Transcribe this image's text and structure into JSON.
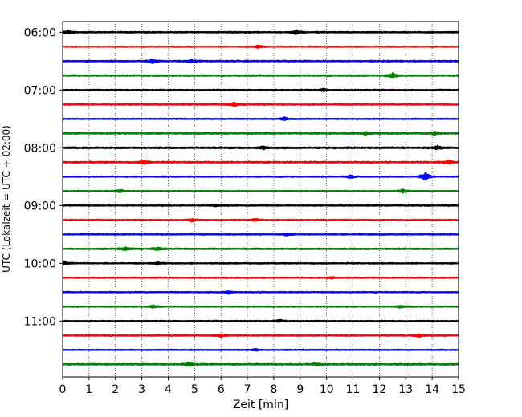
{
  "chart_data": {
    "type": "line",
    "title": "",
    "xlabel": "Zeit  [min]",
    "ylabel": "UTC (Lokalzeit = UTC + 02:00)",
    "xlim": [
      0,
      15
    ],
    "x_ticks": [
      0,
      1,
      2,
      3,
      4,
      5,
      6,
      7,
      8,
      9,
      10,
      11,
      12,
      13,
      14,
      15
    ],
    "y_ticks": [
      "06:00",
      "07:00",
      "08:00",
      "09:00",
      "10:00",
      "11:00"
    ],
    "grid": "vertical-dotted",
    "trace_colors": [
      "#000000",
      "#ff0000",
      "#0000ff",
      "#008000"
    ],
    "traces": [
      {
        "start": "06:00",
        "amplitude": 0.9,
        "events": [
          {
            "t": 0.2,
            "amp": 2.2
          },
          {
            "t": 8.85,
            "amp": 3.0
          }
        ]
      },
      {
        "start": "06:15",
        "amplitude": 0.8,
        "events": [
          {
            "t": 7.4,
            "amp": 1.8
          }
        ]
      },
      {
        "start": "06:30",
        "amplitude": 1.0,
        "events": [
          {
            "t": 3.4,
            "amp": 2.6
          },
          {
            "t": 4.9,
            "amp": 1.6
          }
        ]
      },
      {
        "start": "06:45",
        "amplitude": 1.0,
        "events": [
          {
            "t": 12.5,
            "amp": 3.2
          }
        ]
      },
      {
        "start": "07:00",
        "amplitude": 0.9,
        "events": [
          {
            "t": 9.9,
            "amp": 2.0
          }
        ]
      },
      {
        "start": "07:15",
        "amplitude": 0.9,
        "events": [
          {
            "t": 6.5,
            "amp": 2.6
          }
        ]
      },
      {
        "start": "07:30",
        "amplitude": 0.8,
        "events": [
          {
            "t": 8.4,
            "amp": 2.2
          }
        ]
      },
      {
        "start": "07:45",
        "amplitude": 1.0,
        "events": [
          {
            "t": 11.5,
            "amp": 1.8
          },
          {
            "t": 14.1,
            "amp": 2.2
          }
        ]
      },
      {
        "start": "08:00",
        "amplitude": 1.1,
        "events": [
          {
            "t": 7.6,
            "amp": 1.8
          },
          {
            "t": 14.2,
            "amp": 2.0
          }
        ]
      },
      {
        "start": "08:15",
        "amplitude": 1.1,
        "events": [
          {
            "t": 3.1,
            "amp": 2.2
          },
          {
            "t": 14.6,
            "amp": 2.0
          }
        ]
      },
      {
        "start": "08:30",
        "amplitude": 0.8,
        "events": [
          {
            "t": 10.9,
            "amp": 2.0
          },
          {
            "t": 13.75,
            "amp": 5.5
          }
        ]
      },
      {
        "start": "08:45",
        "amplitude": 0.8,
        "events": [
          {
            "t": 2.2,
            "amp": 2.0
          },
          {
            "t": 12.9,
            "amp": 2.2
          }
        ]
      },
      {
        "start": "09:00",
        "amplitude": 0.8,
        "events": [
          {
            "t": 5.8,
            "amp": 1.4
          }
        ]
      },
      {
        "start": "09:15",
        "amplitude": 0.8,
        "events": [
          {
            "t": 4.9,
            "amp": 1.8
          },
          {
            "t": 7.3,
            "amp": 1.8
          }
        ]
      },
      {
        "start": "09:30",
        "amplitude": 0.8,
        "events": [
          {
            "t": 8.5,
            "amp": 1.8
          }
        ]
      },
      {
        "start": "09:45",
        "amplitude": 1.0,
        "events": [
          {
            "t": 2.4,
            "amp": 2.0
          },
          {
            "t": 3.6,
            "amp": 2.0
          }
        ]
      },
      {
        "start": "10:00",
        "amplitude": 0.8,
        "events": [
          {
            "t": 0.05,
            "amp": 2.6
          },
          {
            "t": 3.6,
            "amp": 1.8
          }
        ]
      },
      {
        "start": "10:15",
        "amplitude": 0.8,
        "events": [
          {
            "t": 10.2,
            "amp": 1.4
          }
        ]
      },
      {
        "start": "10:30",
        "amplitude": 0.8,
        "events": [
          {
            "t": 6.3,
            "amp": 2.0
          }
        ]
      },
      {
        "start": "10:45",
        "amplitude": 0.8,
        "events": [
          {
            "t": 3.45,
            "amp": 1.8
          },
          {
            "t": 12.8,
            "amp": 1.8
          }
        ]
      },
      {
        "start": "11:00",
        "amplitude": 0.8,
        "events": [
          {
            "t": 8.2,
            "amp": 1.8
          }
        ]
      },
      {
        "start": "11:15",
        "amplitude": 0.9,
        "events": [
          {
            "t": 6.0,
            "amp": 2.2
          },
          {
            "t": 13.5,
            "amp": 2.2
          }
        ]
      },
      {
        "start": "11:30",
        "amplitude": 0.8,
        "events": [
          {
            "t": 7.3,
            "amp": 1.4
          }
        ]
      },
      {
        "start": "11:45",
        "amplitude": 1.0,
        "events": [
          {
            "t": 4.8,
            "amp": 2.6
          },
          {
            "t": 9.6,
            "amp": 1.4
          }
        ]
      }
    ]
  }
}
